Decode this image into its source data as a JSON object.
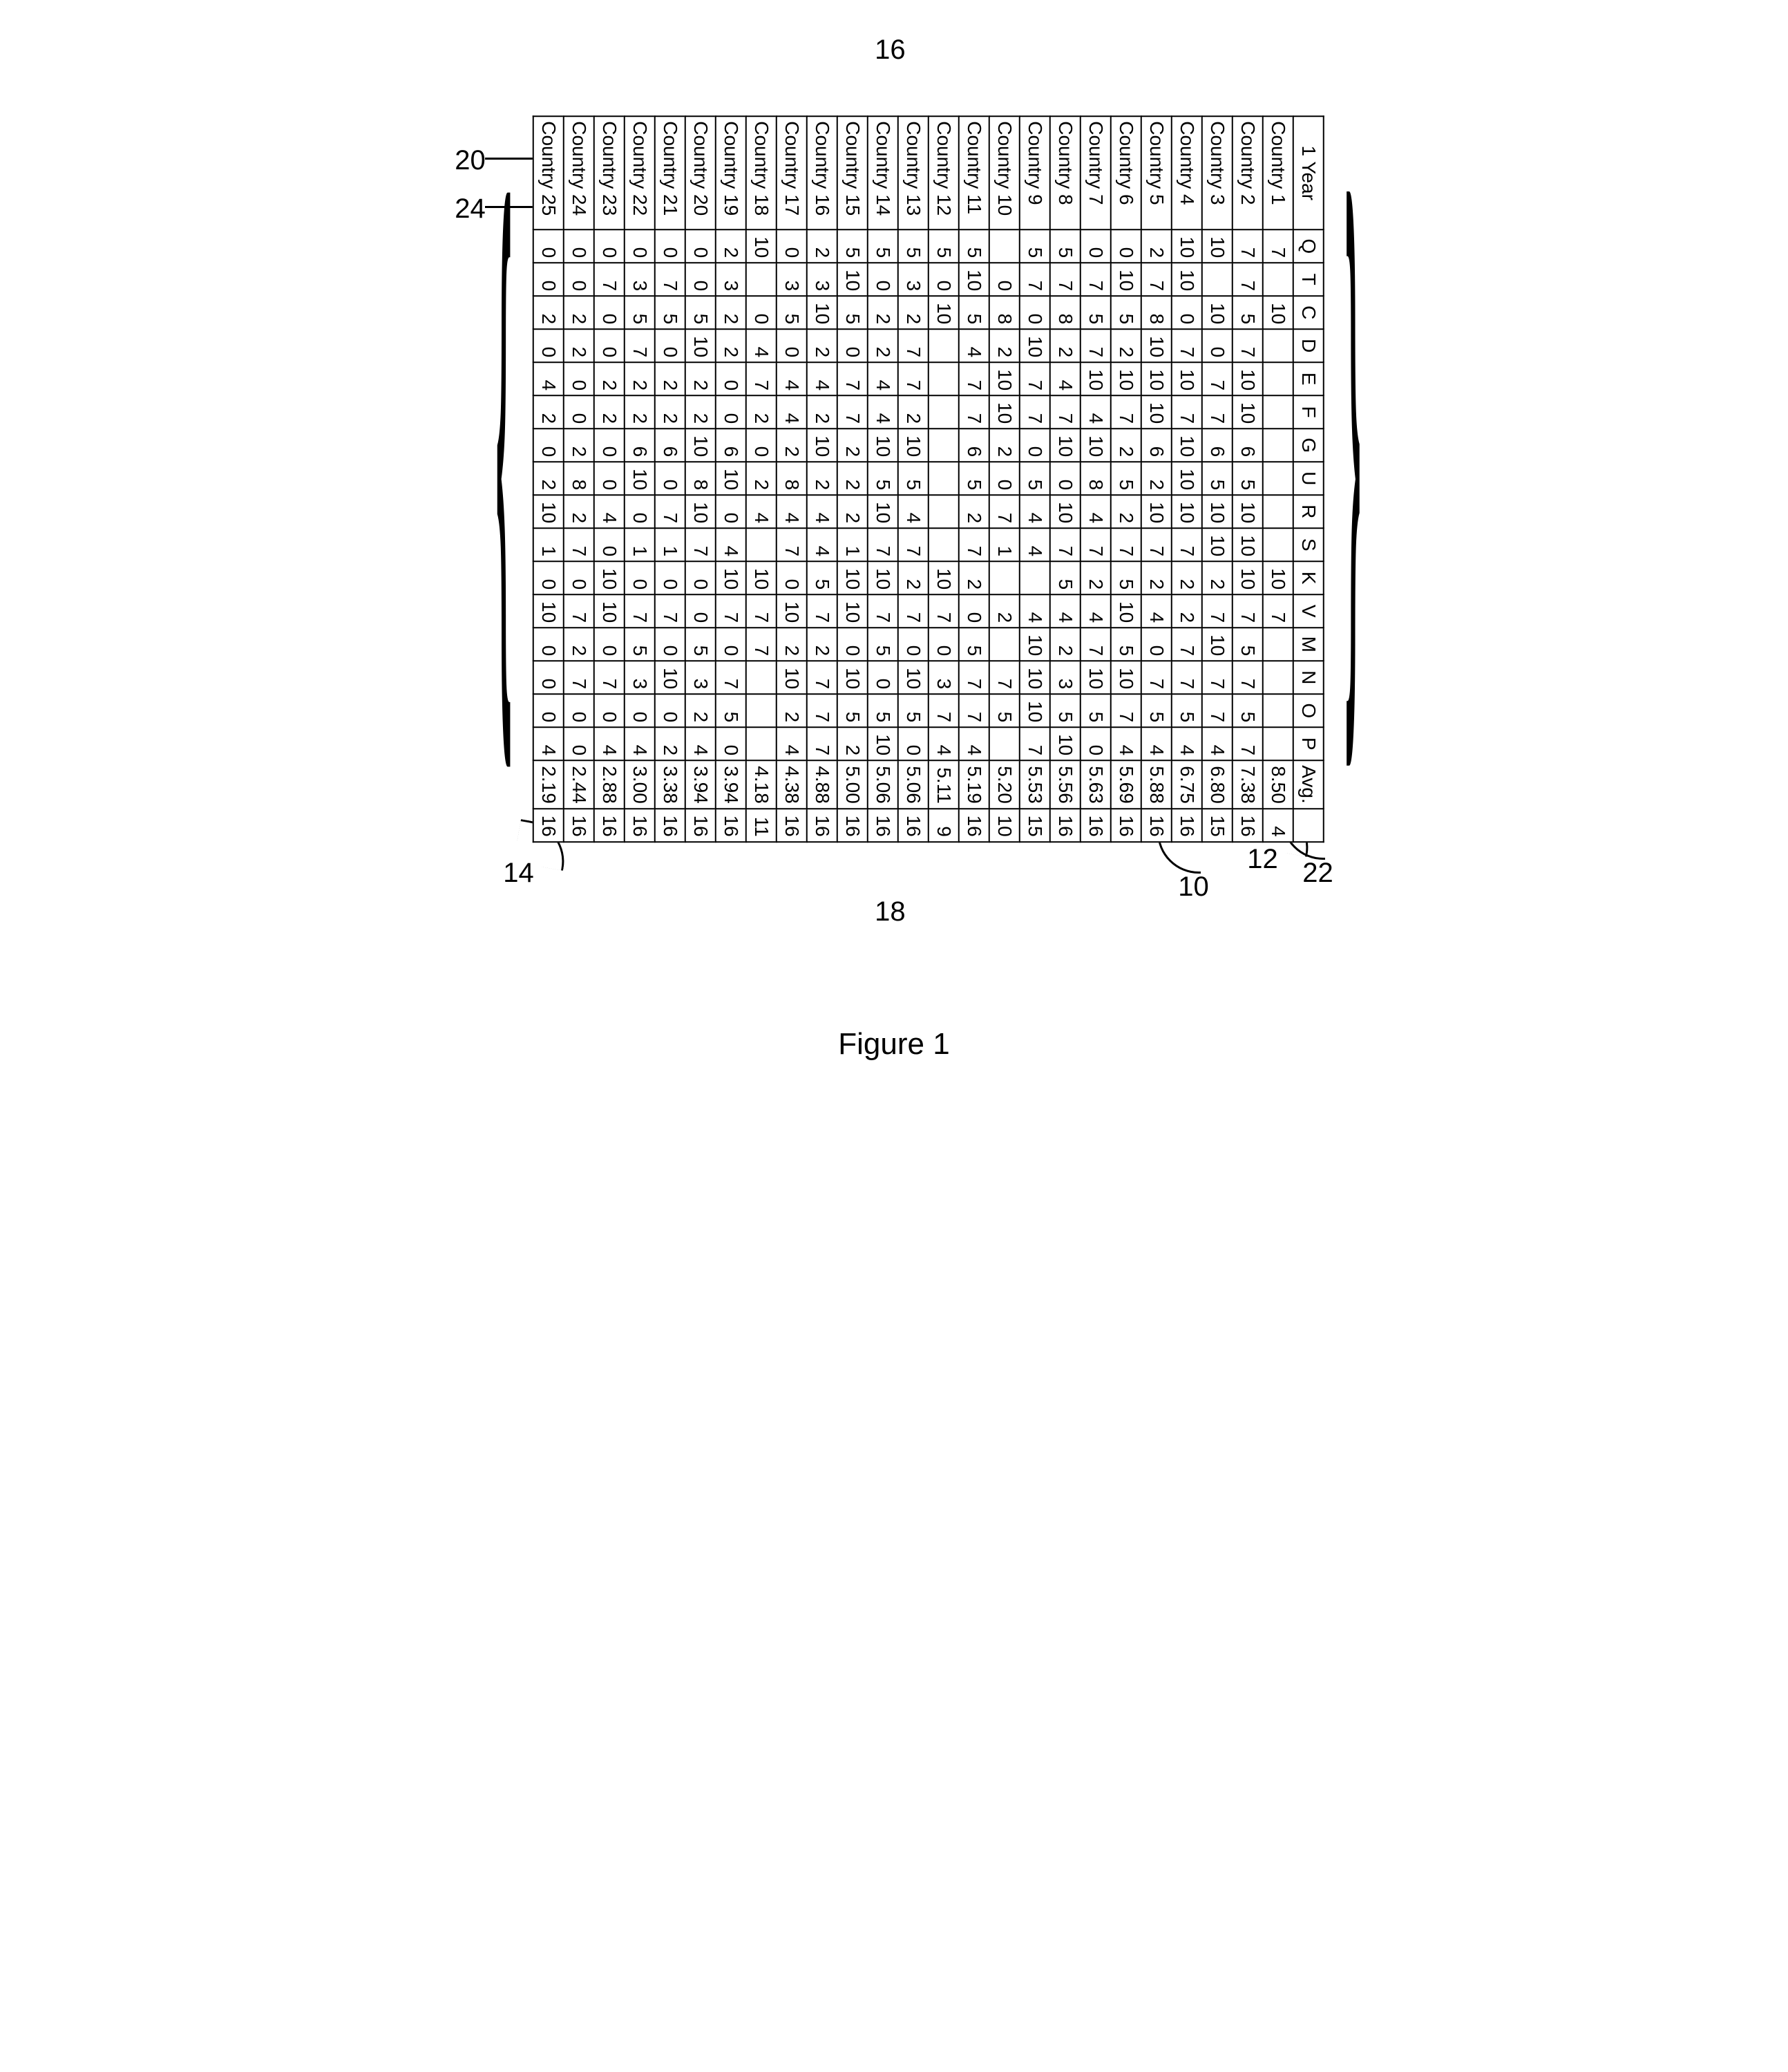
{
  "figure_caption": "Figure 1",
  "callouts": {
    "top_brace": "16",
    "bottom_brace": "18",
    "left_upper": "20",
    "left_lower": "24",
    "bottom_left": "14",
    "bottom_mid_right": "10",
    "bottom_right_inner": "12",
    "bottom_right_outer": "22"
  },
  "table": {
    "background_color": "#ffffff",
    "border_color": "#000000",
    "font_family": "Arial",
    "header_fontsize": 28,
    "cell_fontsize": 28,
    "corner_label": "1 Year",
    "columns": [
      "Q",
      "T",
      "C",
      "D",
      "E",
      "F",
      "G",
      "U",
      "R",
      "S",
      "K",
      "V",
      "M",
      "N",
      "O",
      "P",
      "Avg.",
      ""
    ],
    "rows": [
      {
        "label": "Country 1",
        "cells": [
          "7",
          "",
          "10",
          "",
          "",
          "",
          "",
          "",
          "",
          "",
          "10",
          "7",
          "",
          "",
          "",
          "",
          "8.50",
          "4"
        ]
      },
      {
        "label": "Country 2",
        "cells": [
          "7",
          "7",
          "5",
          "7",
          "10",
          "10",
          "6",
          "5",
          "10",
          "10",
          "10",
          "7",
          "5",
          "7",
          "5",
          "7",
          "7.38",
          "16"
        ]
      },
      {
        "label": "Country 3",
        "cells": [
          "10",
          "",
          "10",
          "0",
          "7",
          "7",
          "6",
          "5",
          "10",
          "10",
          "2",
          "7",
          "10",
          "7",
          "7",
          "4",
          "6.80",
          "15"
        ]
      },
      {
        "label": "Country 4",
        "cells": [
          "10",
          "10",
          "0",
          "7",
          "10",
          "7",
          "10",
          "10",
          "10",
          "7",
          "2",
          "2",
          "7",
          "7",
          "5",
          "4",
          "6.75",
          "16"
        ]
      },
      {
        "label": "Country 5",
        "cells": [
          "2",
          "7",
          "8",
          "10",
          "10",
          "10",
          "6",
          "2",
          "10",
          "7",
          "2",
          "4",
          "0",
          "7",
          "5",
          "4",
          "5.88",
          "16"
        ]
      },
      {
        "label": "Country 6",
        "cells": [
          "0",
          "10",
          "5",
          "2",
          "10",
          "7",
          "2",
          "5",
          "2",
          "7",
          "5",
          "10",
          "5",
          "10",
          "7",
          "4",
          "5.69",
          "16"
        ]
      },
      {
        "label": "Country 7",
        "cells": [
          "0",
          "7",
          "5",
          "7",
          "10",
          "4",
          "10",
          "8",
          "4",
          "7",
          "2",
          "4",
          "7",
          "10",
          "5",
          "0",
          "5.63",
          "16"
        ]
      },
      {
        "label": "Country 8",
        "cells": [
          "5",
          "7",
          "8",
          "2",
          "4",
          "7",
          "10",
          "0",
          "10",
          "7",
          "5",
          "4",
          "2",
          "3",
          "5",
          "10",
          "5.56",
          "16"
        ]
      },
      {
        "label": "Country 9",
        "cells": [
          "5",
          "7",
          "0",
          "10",
          "7",
          "7",
          "0",
          "5",
          "4",
          "4",
          "",
          "4",
          "10",
          "10",
          "10",
          "7",
          "5.53",
          "15"
        ]
      },
      {
        "label": "Country 10",
        "cells": [
          "",
          "0",
          "8",
          "2",
          "10",
          "10",
          "2",
          "0",
          "7",
          "1",
          "",
          "2",
          "",
          "7",
          "5",
          "",
          "5.20",
          "10"
        ]
      },
      {
        "label": "Country 11",
        "cells": [
          "5",
          "10",
          "5",
          "4",
          "7",
          "7",
          "6",
          "5",
          "2",
          "7",
          "2",
          "0",
          "5",
          "7",
          "7",
          "4",
          "5.19",
          "16"
        ]
      },
      {
        "label": "Country 12",
        "cells": [
          "5",
          "0",
          "10",
          "",
          "",
          "",
          "",
          "",
          "",
          "",
          "10",
          "7",
          "0",
          "3",
          "7",
          "4",
          "5.11",
          "9"
        ]
      },
      {
        "label": "Country 13",
        "cells": [
          "5",
          "3",
          "2",
          "7",
          "7",
          "2",
          "10",
          "5",
          "4",
          "7",
          "2",
          "7",
          "0",
          "10",
          "5",
          "0",
          "5.06",
          "16"
        ]
      },
      {
        "label": "Country 14",
        "cells": [
          "5",
          "0",
          "2",
          "2",
          "4",
          "4",
          "10",
          "5",
          "10",
          "7",
          "10",
          "7",
          "5",
          "0",
          "5",
          "10",
          "5.06",
          "16"
        ]
      },
      {
        "label": "Country 15",
        "cells": [
          "5",
          "10",
          "5",
          "0",
          "7",
          "7",
          "2",
          "2",
          "2",
          "1",
          "10",
          "10",
          "0",
          "10",
          "5",
          "2",
          "5.00",
          "16"
        ]
      },
      {
        "label": "Country 16",
        "cells": [
          "2",
          "3",
          "10",
          "2",
          "4",
          "2",
          "10",
          "2",
          "4",
          "4",
          "5",
          "7",
          "2",
          "7",
          "7",
          "7",
          "4.88",
          "16"
        ]
      },
      {
        "label": "Country 17",
        "cells": [
          "0",
          "3",
          "5",
          "0",
          "4",
          "4",
          "2",
          "8",
          "4",
          "7",
          "0",
          "10",
          "2",
          "10",
          "2",
          "4",
          "4.38",
          "16"
        ]
      },
      {
        "label": "Country 18",
        "cells": [
          "10",
          "",
          "0",
          "4",
          "7",
          "2",
          "0",
          "2",
          "4",
          "",
          "10",
          "7",
          "7",
          "",
          "",
          "",
          "4.18",
          "11"
        ]
      },
      {
        "label": "Country 19",
        "cells": [
          "2",
          "3",
          "2",
          "2",
          "0",
          "0",
          "6",
          "10",
          "0",
          "4",
          "10",
          "7",
          "0",
          "7",
          "5",
          "0",
          "3.94",
          "16"
        ]
      },
      {
        "label": "Country 20",
        "cells": [
          "0",
          "0",
          "5",
          "10",
          "2",
          "2",
          "10",
          "8",
          "10",
          "7",
          "0",
          "0",
          "5",
          "3",
          "2",
          "4",
          "3.94",
          "16"
        ]
      },
      {
        "label": "Country 21",
        "cells": [
          "0",
          "7",
          "5",
          "0",
          "2",
          "2",
          "6",
          "0",
          "7",
          "1",
          "0",
          "7",
          "0",
          "10",
          "0",
          "2",
          "3.38",
          "16"
        ]
      },
      {
        "label": "Country 22",
        "cells": [
          "0",
          "3",
          "5",
          "7",
          "2",
          "2",
          "6",
          "10",
          "0",
          "1",
          "0",
          "7",
          "5",
          "3",
          "0",
          "4",
          "3.00",
          "16"
        ]
      },
      {
        "label": "Country 23",
        "cells": [
          "0",
          "7",
          "0",
          "0",
          "2",
          "2",
          "0",
          "0",
          "4",
          "0",
          "10",
          "10",
          "0",
          "7",
          "0",
          "4",
          "2.88",
          "16"
        ]
      },
      {
        "label": "Country 24",
        "cells": [
          "0",
          "0",
          "2",
          "2",
          "0",
          "0",
          "2",
          "8",
          "2",
          "7",
          "0",
          "7",
          "2",
          "7",
          "0",
          "0",
          "2.44",
          "16"
        ]
      },
      {
        "label": "Country 25",
        "cells": [
          "0",
          "0",
          "2",
          "0",
          "4",
          "2",
          "0",
          "2",
          "10",
          "1",
          "0",
          "10",
          "0",
          "0",
          "0",
          "4",
          "2.19",
          "16"
        ]
      }
    ]
  }
}
